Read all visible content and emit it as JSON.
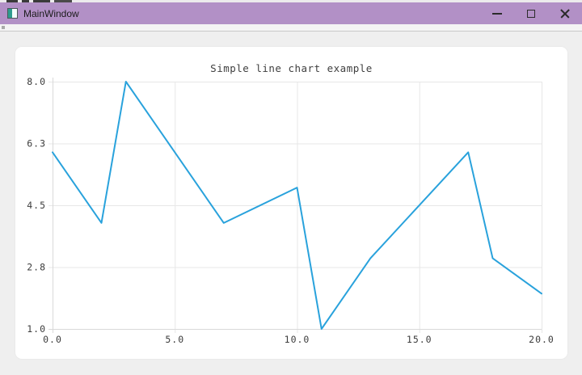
{
  "window": {
    "title": "MainWindow",
    "icons": {
      "app": "app-window-icon",
      "minimize": "minus-icon",
      "maximize": "square-icon",
      "close": "x-icon"
    }
  },
  "chart_data": {
    "type": "line",
    "title": "Simple line chart example",
    "x": [
      0,
      2,
      3,
      7,
      10,
      11,
      13,
      17,
      18,
      20
    ],
    "y": [
      6,
      4,
      8,
      4,
      5,
      1,
      3,
      6,
      3,
      2
    ],
    "xlim": [
      0,
      20
    ],
    "ylim": [
      1,
      8
    ],
    "x_tick_labels": [
      "0.0",
      "5.0",
      "10.0",
      "15.0",
      "20.0"
    ],
    "x_tick_values": [
      0,
      5,
      10,
      15,
      20
    ],
    "y_tick_labels": [
      "8.0",
      "6.3",
      "4.5",
      "2.8",
      "1.0"
    ],
    "y_tick_values": [
      8,
      6.25,
      4.5,
      2.75,
      1
    ],
    "grid": true,
    "legend": "none",
    "colors": {
      "line": "#29a2dc",
      "grid": "#e7e7e7",
      "axis": "#d9d9d9",
      "text": "#3c3c3c",
      "titlebar": "#b290c6",
      "panel": "#ffffff",
      "window_bg": "#efefef"
    }
  }
}
